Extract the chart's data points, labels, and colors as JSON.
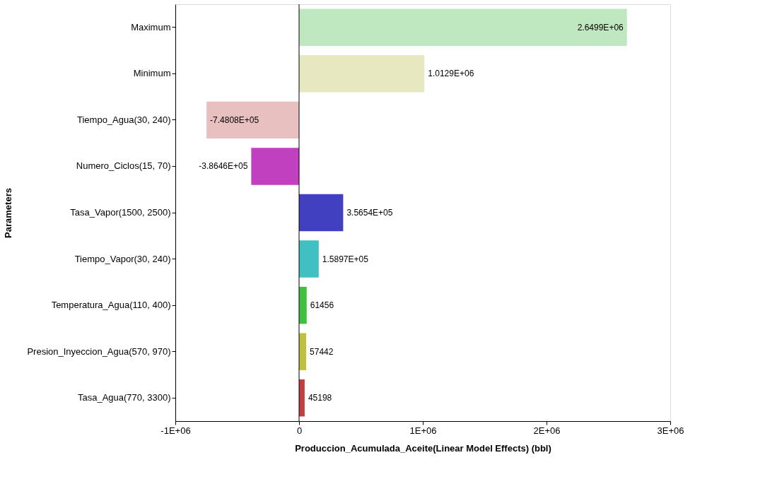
{
  "chart_data": {
    "type": "bar",
    "orientation": "horizontal",
    "xlabel": "Produccion_Acumulada_Aceite(Linear Model Effects) (bbl)",
    "ylabel": "Parameters",
    "categories": [
      "Maximum",
      "Minimum",
      "Tiempo_Agua(30, 240)",
      "Numero_Ciclos(15, 70)",
      "Tasa_Vapor(1500, 2500)",
      "Tiempo_Vapor(30, 240)",
      "Temperatura_Agua(110, 400)",
      "Presion_Inyeccion_Agua(570, 970)",
      "Tasa_Agua(770, 3300)"
    ],
    "values": [
      2649900,
      1012900,
      -748080,
      -386460,
      356540,
      158970,
      61456,
      57442,
      45198
    ],
    "value_labels": [
      "2.6499E+06",
      "1.0129E+06",
      "-7.4808E+05",
      "-3.8646E+05",
      "3.5654E+05",
      "1.5897E+05",
      "61456",
      "57442",
      "45198"
    ],
    "colors": [
      "#c0e8c0",
      "#e8e8c0",
      "#e8c0c0",
      "#c040c0",
      "#4040c0",
      "#40c0c0",
      "#40c040",
      "#c0c040",
      "#c04040"
    ],
    "xlim": [
      -1000000,
      3000000
    ],
    "xticks": [
      {
        "value": -1000000,
        "label": "-1E+06"
      },
      0,
      {
        "value": 1000000,
        "label": "1E+06"
      },
      {
        "value": 2000000,
        "label": "2E+06"
      },
      {
        "value": 3000000,
        "label": "3E+06"
      }
    ],
    "ref_lines": [
      {
        "axis": "x",
        "value": 0,
        "color": "#000000"
      }
    ],
    "grid": false
  }
}
